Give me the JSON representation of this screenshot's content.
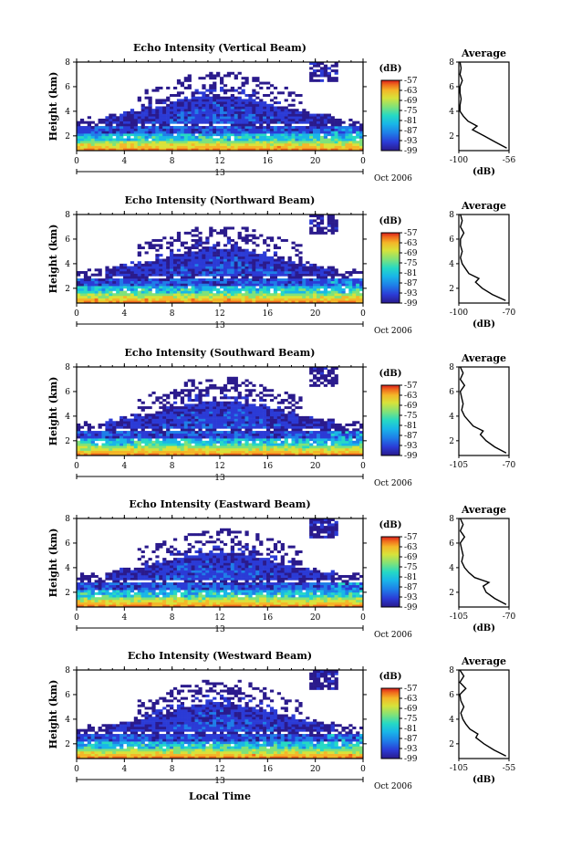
{
  "chart_data": [
    {
      "type": "heatmap",
      "title": "Echo Intensity (Vertical Beam)",
      "ylabel": "Height (km)",
      "xlabel": "",
      "x_ticks": [
        "0",
        "4",
        "8",
        "12",
        "16",
        "20",
        "0"
      ],
      "y_ticks": [
        "2",
        "4",
        "6",
        "8"
      ],
      "date_day": "13",
      "date_suffix": "Oct 2006",
      "xlim": [
        0,
        24
      ],
      "ylim": [
        0.8,
        8
      ],
      "colorbar": {
        "unit": "(dB)",
        "ticks": [
          "-57",
          "-63",
          "-69",
          "-75",
          "-81",
          "-87",
          "-93",
          "-99"
        ],
        "range": [
          -99,
          -57
        ]
      },
      "avg_profile": {
        "title": "Average",
        "xlabel": "(dB)",
        "xlim": [
          -100,
          -56
        ],
        "x_ticks": [
          "-100",
          "-56"
        ],
        "y_ticks": [
          "2",
          "4",
          "6",
          "8"
        ],
        "height_km": [
          1.0,
          1.5,
          2.0,
          2.5,
          2.8,
          3.2,
          3.6,
          4.0,
          4.5,
          5.0,
          5.5,
          6.0,
          6.5,
          7.0,
          7.5,
          8.0
        ],
        "values_db": [
          -58,
          -68,
          -78,
          -88,
          -84,
          -92,
          -96,
          -99,
          -99,
          -98,
          -99,
          -99,
          -97,
          -99,
          -98,
          -99
        ]
      }
    },
    {
      "type": "heatmap",
      "title": "Echo Intensity (Northward Beam)",
      "ylabel": "Height (km)",
      "xlabel": "",
      "x_ticks": [
        "0",
        "4",
        "8",
        "12",
        "16",
        "20",
        "0"
      ],
      "y_ticks": [
        "2",
        "4",
        "6",
        "8"
      ],
      "date_day": "13",
      "date_suffix": "Oct 2006",
      "xlim": [
        0,
        24
      ],
      "ylim": [
        0.8,
        8
      ],
      "colorbar": {
        "unit": "(dB)",
        "ticks": [
          "-57",
          "-63",
          "-69",
          "-75",
          "-81",
          "-87",
          "-93",
          "-99"
        ],
        "range": [
          -99,
          -57
        ]
      },
      "avg_profile": {
        "title": "Average",
        "xlabel": "(dB)",
        "xlim": [
          -100,
          -70
        ],
        "x_ticks": [
          "-100",
          "-70"
        ],
        "y_ticks": [
          "2",
          "4",
          "6",
          "8"
        ],
        "height_km": [
          1.0,
          1.5,
          2.0,
          2.5,
          2.8,
          3.2,
          3.6,
          4.0,
          4.5,
          5.0,
          5.5,
          6.0,
          6.5,
          7.0,
          7.5,
          8.0
        ],
        "values_db": [
          -72,
          -80,
          -86,
          -90,
          -88,
          -94,
          -96,
          -98,
          -99,
          -98,
          -99,
          -99,
          -97,
          -99,
          -98,
          -99
        ]
      }
    },
    {
      "type": "heatmap",
      "title": "Echo Intensity (Southward Beam)",
      "ylabel": "Height (km)",
      "xlabel": "",
      "x_ticks": [
        "0",
        "4",
        "8",
        "12",
        "16",
        "20",
        "0"
      ],
      "y_ticks": [
        "2",
        "4",
        "6",
        "8"
      ],
      "date_day": "13",
      "date_suffix": "Oct 2006",
      "xlim": [
        0,
        24
      ],
      "ylim": [
        0.8,
        8
      ],
      "colorbar": {
        "unit": "(dB)",
        "ticks": [
          "-57",
          "-63",
          "-69",
          "-75",
          "-81",
          "-87",
          "-93",
          "-99"
        ],
        "range": [
          -99,
          -57
        ]
      },
      "avg_profile": {
        "title": "Average",
        "xlabel": "",
        "xlim": [
          -105,
          -70
        ],
        "x_ticks": [
          "-105",
          "-70"
        ],
        "y_ticks": [
          "2",
          "4",
          "6",
          "8"
        ],
        "height_km": [
          1.0,
          1.5,
          2.0,
          2.5,
          2.8,
          3.2,
          3.6,
          4.0,
          4.5,
          5.0,
          5.5,
          6.0,
          6.5,
          7.0,
          7.5,
          8.0
        ],
        "values_db": [
          -72,
          -80,
          -86,
          -90,
          -88,
          -95,
          -98,
          -101,
          -103,
          -102,
          -103,
          -104,
          -101,
          -104,
          -102,
          -104
        ]
      }
    },
    {
      "type": "heatmap",
      "title": "Echo Intensity (Eastward Beam)",
      "ylabel": "Height (km)",
      "xlabel": "",
      "x_ticks": [
        "0",
        "4",
        "8",
        "12",
        "16",
        "20",
        "0"
      ],
      "y_ticks": [
        "2",
        "4",
        "6",
        "8"
      ],
      "date_day": "13",
      "date_suffix": "Oct 2006",
      "xlim": [
        0,
        24
      ],
      "ylim": [
        0.8,
        8
      ],
      "colorbar": {
        "unit": "(dB)",
        "ticks": [
          "-57",
          "-63",
          "-69",
          "-75",
          "-81",
          "-87",
          "-93",
          "-99"
        ],
        "range": [
          -99,
          -57
        ]
      },
      "avg_profile": {
        "title": "Average",
        "xlabel": "(dB)",
        "xlim": [
          -105,
          -70
        ],
        "x_ticks": [
          "-105",
          "-70"
        ],
        "y_ticks": [
          "2",
          "4",
          "6",
          "8"
        ],
        "height_km": [
          1.0,
          1.5,
          2.0,
          2.5,
          2.8,
          3.2,
          3.6,
          4.0,
          4.5,
          5.0,
          5.5,
          6.0,
          6.5,
          7.0,
          7.5,
          8.0
        ],
        "values_db": [
          -72,
          -80,
          -86,
          -88,
          -84,
          -94,
          -98,
          -101,
          -103,
          -102,
          -103,
          -104,
          -101,
          -104,
          -102,
          -104
        ]
      }
    },
    {
      "type": "heatmap",
      "title": "Echo Intensity (Westward Beam)",
      "ylabel": "Height (km)",
      "xlabel": "Local Time",
      "x_ticks": [
        "0",
        "4",
        "8",
        "12",
        "16",
        "20",
        "0"
      ],
      "y_ticks": [
        "2",
        "4",
        "6",
        "8"
      ],
      "date_day": "13",
      "date_suffix": "Oct 2006",
      "xlim": [
        0,
        24
      ],
      "ylim": [
        0.8,
        8
      ],
      "colorbar": {
        "unit": "(dB)",
        "ticks": [
          "-57",
          "-63",
          "-69",
          "-75",
          "-81",
          "-87",
          "-93",
          "-99"
        ],
        "range": [
          -99,
          -57
        ]
      },
      "avg_profile": {
        "title": "Average",
        "xlabel": "(dB)",
        "xlim": [
          -105,
          -55
        ],
        "x_ticks": [
          "-105",
          "-55"
        ],
        "y_ticks": [
          "2",
          "4",
          "6",
          "8"
        ],
        "height_km": [
          1.0,
          1.5,
          2.0,
          2.5,
          2.8,
          3.2,
          3.6,
          4.0,
          4.5,
          5.0,
          5.5,
          6.0,
          6.5,
          7.0,
          7.5,
          8.0
        ],
        "values_db": [
          -58,
          -70,
          -80,
          -88,
          -86,
          -94,
          -98,
          -101,
          -103,
          -100,
          -103,
          -104,
          -98,
          -104,
          -100,
          -104
        ]
      }
    }
  ],
  "colors": {
    "colormap": [
      "#2a1a8c",
      "#2b3bd6",
      "#1f7ee8",
      "#19b6e8",
      "#26d9c4",
      "#7fe27a",
      "#d8e23a",
      "#f4b628",
      "#f06a1c",
      "#d81e1e"
    ],
    "background": "#ffffff"
  }
}
